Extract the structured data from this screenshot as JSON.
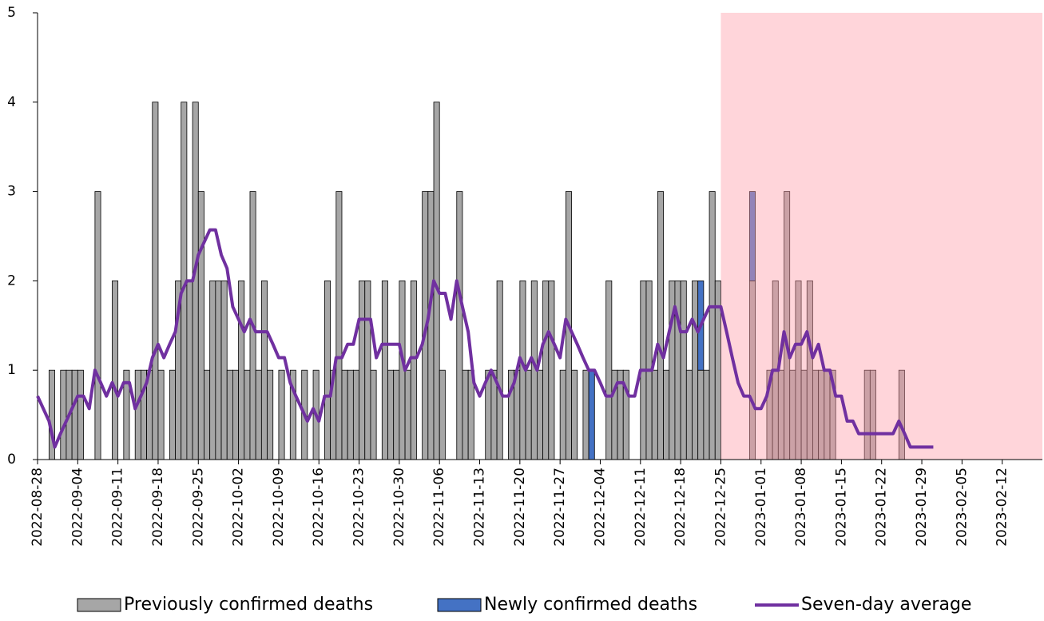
{
  "chart_data": {
    "type": "bar",
    "stacked": true,
    "categories": [
      "2022-08-28",
      null,
      null,
      null,
      null,
      null,
      null,
      "2022-09-04",
      null,
      null,
      null,
      null,
      null,
      null,
      "2022-09-11",
      null,
      null,
      null,
      null,
      null,
      null,
      "2022-09-18",
      null,
      null,
      null,
      null,
      null,
      null,
      "2022-09-25",
      null,
      null,
      null,
      null,
      null,
      null,
      "2022-10-02",
      null,
      null,
      null,
      null,
      null,
      null,
      "2022-10-09",
      null,
      null,
      null,
      null,
      null,
      null,
      "2022-10-16",
      null,
      null,
      null,
      null,
      null,
      null,
      "2022-10-23",
      null,
      null,
      null,
      null,
      null,
      null,
      "2022-10-30",
      null,
      null,
      null,
      null,
      null,
      null,
      "2022-11-06",
      null,
      null,
      null,
      null,
      null,
      null,
      "2022-11-13",
      null,
      null,
      null,
      null,
      null,
      null,
      "2022-11-20",
      null,
      null,
      null,
      null,
      null,
      null,
      "2022-11-27",
      null,
      null,
      null,
      null,
      null,
      null,
      "2022-12-04",
      null,
      null,
      null,
      null,
      null,
      null,
      "2022-12-11",
      null,
      null,
      null,
      null,
      null,
      null,
      "2022-12-18",
      null,
      null,
      null,
      null,
      null,
      null,
      "2022-12-25",
      null,
      null,
      null,
      null,
      null,
      null,
      "2023-01-01",
      null,
      null,
      null,
      null,
      null,
      null,
      "2023-01-08",
      null,
      null,
      null,
      null,
      null,
      null,
      "2023-01-15",
      null,
      null,
      null,
      null,
      null,
      null,
      "2023-01-22",
      null,
      null,
      null,
      null,
      null,
      null,
      "2023-01-29",
      null,
      null,
      null,
      null,
      null,
      null,
      "2023-02-05",
      null,
      null,
      null,
      null,
      null,
      null,
      "2023-02-12",
      null,
      null,
      null,
      null,
      null,
      null
    ],
    "series": [
      {
        "name": "Previously confirmed deaths",
        "type": "bar",
        "color": "#a6a6a6",
        "values": [
          0,
          0,
          1,
          0,
          1,
          1,
          1,
          1,
          0,
          0,
          3,
          0,
          0,
          2,
          0,
          1,
          0,
          1,
          1,
          1,
          4,
          1,
          0,
          1,
          2,
          4,
          2,
          4,
          3,
          1,
          2,
          2,
          2,
          1,
          1,
          2,
          1,
          3,
          1,
          2,
          1,
          0,
          1,
          0,
          1,
          0,
          1,
          0,
          1,
          0,
          2,
          1,
          3,
          1,
          1,
          1,
          2,
          2,
          1,
          0,
          2,
          1,
          1,
          2,
          1,
          2,
          0,
          3,
          3,
          4,
          1,
          0,
          0,
          3,
          1,
          1,
          0,
          0,
          1,
          1,
          2,
          0,
          1,
          1,
          2,
          1,
          2,
          1,
          2,
          2,
          0,
          1,
          3,
          1,
          0,
          1,
          0,
          0,
          0,
          2,
          1,
          1,
          1,
          0,
          0,
          2,
          2,
          1,
          3,
          1,
          2,
          2,
          2,
          1,
          2,
          1,
          1,
          3,
          2,
          0,
          0,
          0,
          0,
          0,
          2,
          0,
          0,
          1,
          2,
          1,
          3,
          1,
          2,
          1,
          2,
          1,
          1,
          1,
          1,
          0,
          0,
          0,
          0,
          0,
          1,
          1,
          0,
          0,
          0,
          0,
          1,
          0,
          0,
          0,
          0,
          0,
          0,
          0,
          0,
          0,
          0,
          0,
          0,
          0,
          0,
          0,
          0,
          0,
          0,
          0,
          0,
          0,
          0,
          0,
          0
        ]
      },
      {
        "name": "Newly confirmed deaths",
        "type": "bar",
        "color": "#4472c4",
        "values": [
          0,
          0,
          0,
          0,
          0,
          0,
          0,
          0,
          0,
          0,
          0,
          0,
          0,
          0,
          0,
          0,
          0,
          0,
          0,
          0,
          0,
          0,
          0,
          0,
          0,
          0,
          0,
          0,
          0,
          0,
          0,
          0,
          0,
          0,
          0,
          0,
          0,
          0,
          0,
          0,
          0,
          0,
          0,
          0,
          0,
          0,
          0,
          0,
          0,
          0,
          0,
          0,
          0,
          0,
          0,
          0,
          0,
          0,
          0,
          0,
          0,
          0,
          0,
          0,
          0,
          0,
          0,
          0,
          0,
          0,
          0,
          0,
          0,
          0,
          0,
          0,
          0,
          0,
          0,
          0,
          0,
          0,
          0,
          0,
          0,
          0,
          0,
          0,
          0,
          0,
          0,
          0,
          0,
          0,
          0,
          0,
          1,
          0,
          0,
          0,
          0,
          0,
          0,
          0,
          0,
          0,
          0,
          0,
          0,
          0,
          0,
          0,
          0,
          0,
          0,
          1,
          0,
          0,
          0,
          0,
          0,
          0,
          0,
          0,
          1,
          0,
          0,
          0,
          0,
          0,
          0,
          0,
          0,
          0,
          0,
          0,
          0,
          0,
          0,
          0,
          0,
          0,
          0,
          0,
          0,
          0,
          0,
          0,
          0,
          0,
          0,
          0,
          0,
          0,
          0,
          0,
          0,
          0,
          0,
          0,
          0,
          0,
          0,
          0,
          0,
          0,
          0,
          0,
          0,
          0,
          0,
          0,
          0,
          0,
          0
        ]
      },
      {
        "name": "Seven-day average",
        "type": "line",
        "color": "#7030a0",
        "values": [
          0.71,
          0.57,
          0.43,
          0.14,
          0.29,
          0.43,
          0.57,
          0.71,
          0.71,
          0.57,
          1,
          0.86,
          0.71,
          0.86,
          0.71,
          0.86,
          0.86,
          0.57,
          0.71,
          0.86,
          1.14,
          1.29,
          1.14,
          1.29,
          1.43,
          1.86,
          2,
          2,
          2.29,
          2.43,
          2.57,
          2.57,
          2.29,
          2.14,
          1.71,
          1.57,
          1.43,
          1.57,
          1.43,
          1.43,
          1.43,
          1.29,
          1.14,
          1.14,
          0.86,
          0.71,
          0.57,
          0.43,
          0.57,
          0.43,
          0.71,
          0.71,
          1.14,
          1.14,
          1.29,
          1.29,
          1.57,
          1.57,
          1.57,
          1.14,
          1.29,
          1.29,
          1.29,
          1.29,
          1,
          1.14,
          1.14,
          1.29,
          1.57,
          2,
          1.86,
          1.86,
          1.57,
          2,
          1.71,
          1.43,
          0.86,
          0.71,
          0.86,
          1,
          0.86,
          0.71,
          0.71,
          0.86,
          1.14,
          1,
          1.14,
          1,
          1.29,
          1.43,
          1.29,
          1.14,
          1.57,
          1.43,
          1.29,
          1.14,
          1,
          1,
          0.86,
          0.71,
          0.71,
          0.86,
          0.86,
          0.71,
          0.71,
          1,
          1,
          1,
          1.29,
          1.14,
          1.43,
          1.71,
          1.43,
          1.43,
          1.57,
          1.43,
          1.57,
          1.71,
          1.71,
          1.71,
          1.43,
          1.14,
          0.86,
          0.71,
          0.71,
          0.57,
          0.57,
          0.71,
          1,
          1,
          1.43,
          1.14,
          1.29,
          1.29,
          1.43,
          1.14,
          1.29,
          1,
          1,
          0.71,
          0.71,
          0.43,
          0.43,
          0.29,
          0.29,
          0.29,
          0.29,
          0.29,
          0.29,
          0.29,
          0.43,
          0.29,
          0.14,
          0.14,
          0.14,
          0.14,
          0.14,
          null,
          null,
          null,
          null,
          null,
          null,
          null,
          null,
          null,
          null,
          null,
          null,
          null,
          null,
          null,
          null,
          null,
          null
        ]
      }
    ],
    "ylim": [
      0,
      5
    ],
    "yticks": [
      0,
      1,
      2,
      3,
      4,
      5
    ],
    "grid": false,
    "legend": "bottom",
    "shaded_from": "2022-12-25",
    "shade_color": "#ff9aa6"
  }
}
